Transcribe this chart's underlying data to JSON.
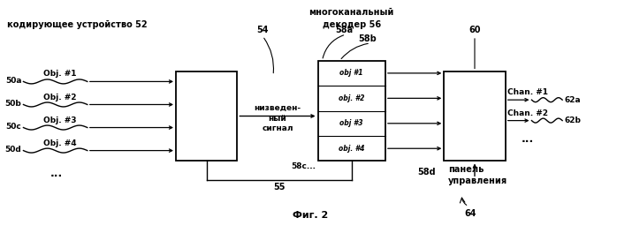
{
  "bg_color": "#ffffff",
  "title_text": "Фиг. 2",
  "label_encoding": "кодирующее устройство",
  "label_52": "52",
  "label_54": "54",
  "label_multichannel": "многоканальный",
  "label_decoder": "декодер",
  "label_56": "56",
  "label_downmix": "низведен-\nный\nсигнал",
  "label_58a": "58a",
  "label_58b": "58b",
  "label_58c": "58c",
  "label_58d": "58d",
  "label_60": "60",
  "label_panel": "панель\nуправления",
  "label_64": "64",
  "label_55": "55",
  "inputs": [
    "50a",
    "50b",
    "50c",
    "50d"
  ],
  "input_labels": [
    "Obj. #1",
    "Obj. #2",
    "Obj. #3",
    "Obj. #4"
  ],
  "obj_labels": [
    "obj #1",
    "obj. #2",
    "obj #3",
    "obj. #4"
  ],
  "output_labels": [
    "Chan. #1",
    "Chan. #2"
  ],
  "output_nums": [
    "62a",
    "62b"
  ]
}
